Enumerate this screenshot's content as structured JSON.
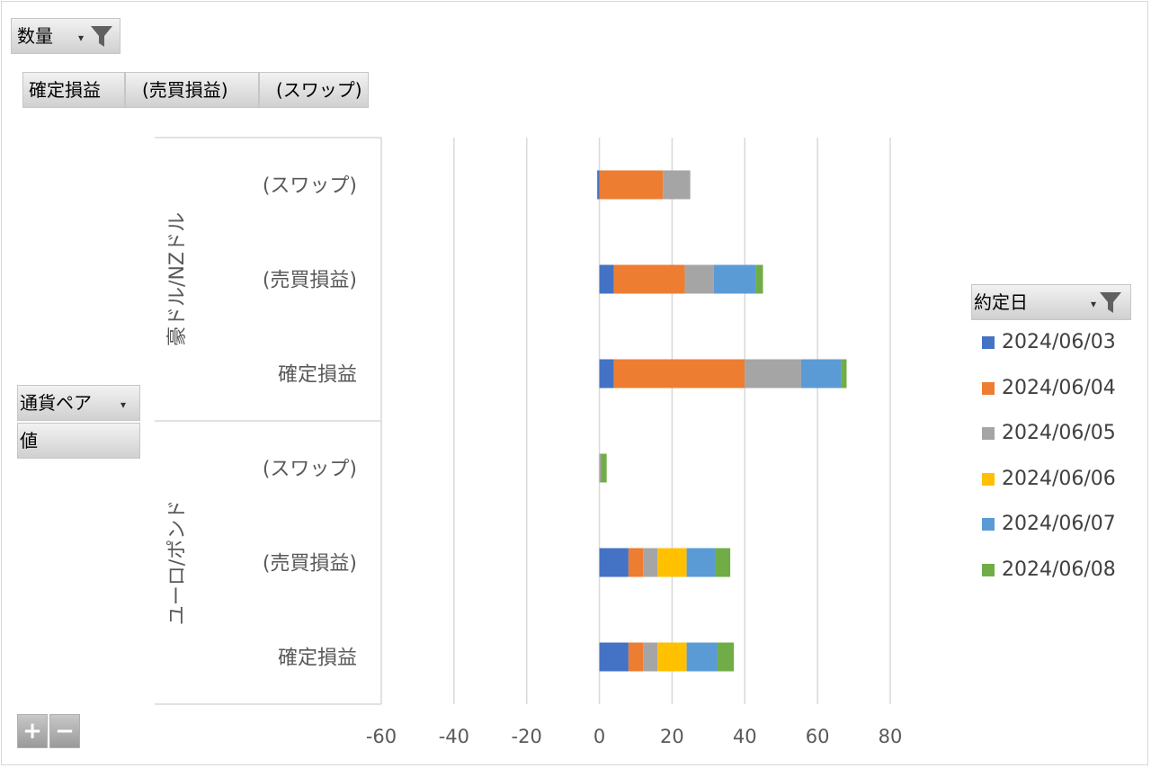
{
  "filter_field": {
    "label": "数量"
  },
  "column_fields": [
    "確定損益",
    "(売買損益)",
    "(スワップ)"
  ],
  "row_field": {
    "label": "通貨ペア"
  },
  "values_field": {
    "label": "値"
  },
  "legend_field": {
    "label": "約定日"
  },
  "zoom": {
    "plus": "+",
    "minus": "−"
  },
  "colors": {
    "2024/06/03": "#4472c4",
    "2024/06/04": "#ed7d31",
    "2024/06/05": "#a5a5a5",
    "2024/06/06": "#ffc000",
    "2024/06/07": "#5b9bd5",
    "2024/06/08": "#70ad47"
  },
  "chart_data": {
    "type": "bar",
    "orientation": "horizontal",
    "stacked": true,
    "groups": [
      {
        "label": "豪ドル/NZドル",
        "categories": [
          "(スワップ)",
          "(売買損益)",
          "確定損益"
        ]
      },
      {
        "label": "ユーロ/ポンド",
        "categories": [
          "(スワップ)",
          "(売買損益)",
          "確定損益"
        ]
      }
    ],
    "series": [
      {
        "name": "2024/06/03",
        "values": [
          -0.6,
          4,
          4,
          0,
          8,
          8
        ]
      },
      {
        "name": "2024/06/04",
        "values": [
          17.5,
          19.5,
          36,
          0.2,
          4,
          4
        ]
      },
      {
        "name": "2024/06/05",
        "values": [
          7.5,
          8,
          15.5,
          0.1,
          4,
          4
        ]
      },
      {
        "name": "2024/06/06",
        "values": [
          0,
          0,
          0,
          0,
          8,
          8
        ]
      },
      {
        "name": "2024/06/07",
        "values": [
          0,
          11.5,
          11,
          0.2,
          8,
          8.5
        ]
      },
      {
        "name": "2024/06/08",
        "values": [
          0,
          2,
          1.5,
          1.5,
          4,
          4.5
        ]
      }
    ],
    "xlim": [
      -60,
      80
    ],
    "xticks": [
      -60,
      -40,
      -20,
      0,
      20,
      40,
      60,
      80
    ],
    "grid": true,
    "legend_position": "right"
  }
}
